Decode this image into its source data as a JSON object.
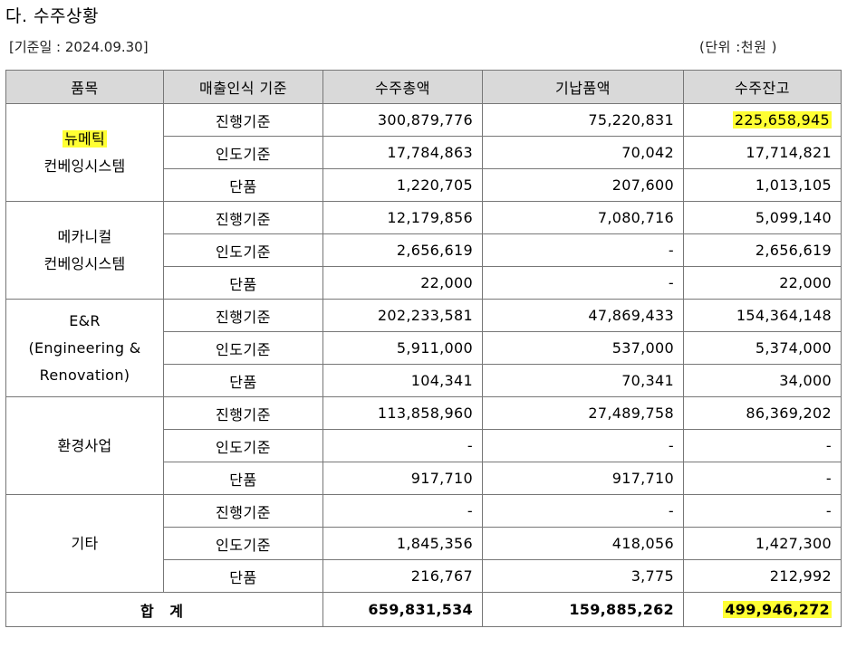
{
  "heading": "다. 수주상황",
  "base_date": "[기준일 : 2024.09.30]",
  "unit": "(단위 :천원 )",
  "colors": {
    "header_bg": "#d9d9d9",
    "highlight": "#ffff33",
    "border": "#777777"
  },
  "table": {
    "headers": [
      "품목",
      "매출인식 기준",
      "수주총액",
      "기납품액",
      "수주잔고"
    ],
    "groups": [
      {
        "name_lines": [
          "뉴메틱",
          "컨베잉시스템"
        ],
        "rows": [
          {
            "basis": "진행기준",
            "order_total": "300,879,776",
            "delivered": "75,220,831",
            "backlog": "225,658,945"
          },
          {
            "basis": "인도기준",
            "order_total": "17,784,863",
            "delivered": "70,042",
            "backlog": "17,714,821"
          },
          {
            "basis": "단품",
            "order_total": "1,220,705",
            "delivered": "207,600",
            "backlog": "1,013,105"
          }
        ]
      },
      {
        "name_lines": [
          "메카니컬",
          "컨베잉시스템"
        ],
        "rows": [
          {
            "basis": "진행기준",
            "order_total": "12,179,856",
            "delivered": "7,080,716",
            "backlog": "5,099,140"
          },
          {
            "basis": "인도기준",
            "order_total": "2,656,619",
            "delivered": "-",
            "backlog": "2,656,619"
          },
          {
            "basis": "단품",
            "order_total": "22,000",
            "delivered": "-",
            "backlog": "22,000"
          }
        ]
      },
      {
        "name_lines": [
          "E&R",
          "(Engineering &",
          "Renovation)"
        ],
        "rows": [
          {
            "basis": "진행기준",
            "order_total": "202,233,581",
            "delivered": "47,869,433",
            "backlog": "154,364,148"
          },
          {
            "basis": "인도기준",
            "order_total": "5,911,000",
            "delivered": "537,000",
            "backlog": "5,374,000"
          },
          {
            "basis": "단품",
            "order_total": "104,341",
            "delivered": "70,341",
            "backlog": "34,000"
          }
        ]
      },
      {
        "name_lines": [
          "환경사업"
        ],
        "rows": [
          {
            "basis": "진행기준",
            "order_total": "113,858,960",
            "delivered": "27,489,758",
            "backlog": "86,369,202"
          },
          {
            "basis": "인도기준",
            "order_total": "-",
            "delivered": "-",
            "backlog": "-"
          },
          {
            "basis": "단품",
            "order_total": "917,710",
            "delivered": "917,710",
            "backlog": "-"
          }
        ]
      },
      {
        "name_lines": [
          "기타"
        ],
        "rows": [
          {
            "basis": "진행기준",
            "order_total": "-",
            "delivered": "-",
            "backlog": "-"
          },
          {
            "basis": "인도기준",
            "order_total": "1,845,356",
            "delivered": "418,056",
            "backlog": "1,427,300"
          },
          {
            "basis": "단품",
            "order_total": "216,767",
            "delivered": "3,775",
            "backlog": "212,992"
          }
        ]
      }
    ],
    "total": {
      "label": "합 계",
      "order_total": "659,831,534",
      "delivered": "159,885,262",
      "backlog": "499,946,272"
    }
  }
}
